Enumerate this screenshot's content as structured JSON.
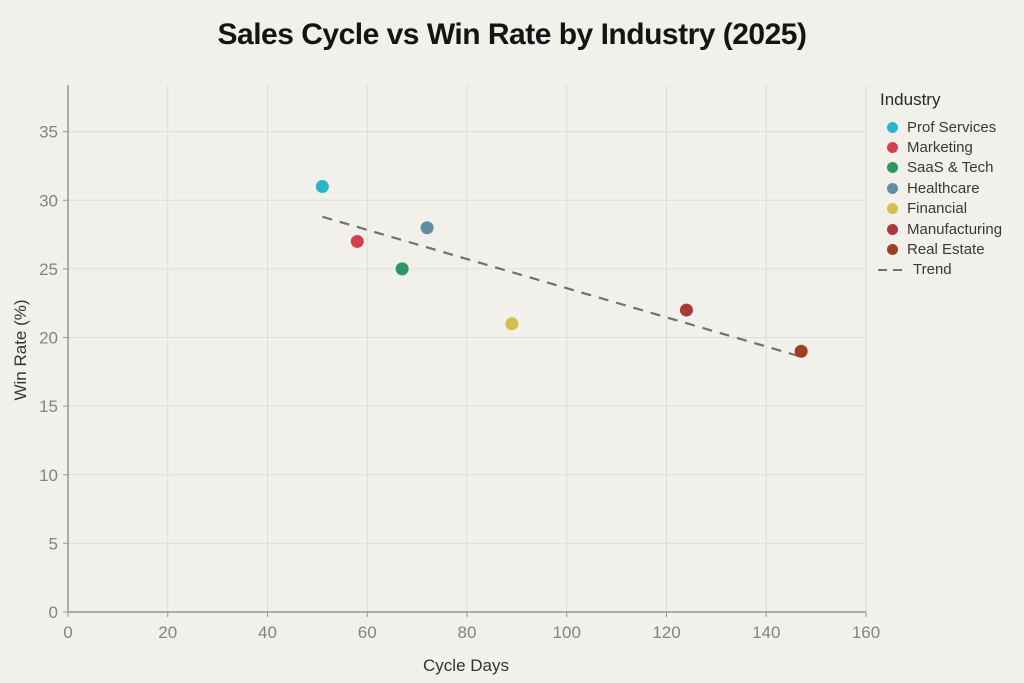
{
  "title": "Sales Cycle vs Win Rate by Industry (2025)",
  "colors": {
    "background": "#f1f0ea",
    "grid": "#dfded6",
    "axis": "#97968e",
    "tick_label": "#85847c",
    "axis_title": "#34332e",
    "title_text": "#141414",
    "trend": "#72716b"
  },
  "chart_data": {
    "type": "scatter",
    "title": "Sales Cycle vs Win Rate by Industry (2025)",
    "xlabel": "Cycle Days",
    "ylabel": "Win Rate (%)",
    "xlim": [
      0,
      160
    ],
    "ylim": [
      0,
      38.4
    ],
    "x_ticks": [
      0,
      20,
      40,
      60,
      80,
      100,
      120,
      140,
      160
    ],
    "y_ticks": [
      0,
      5,
      10,
      15,
      20,
      25,
      30,
      35
    ],
    "grid": true,
    "legend_title": "Industry",
    "legend_position": "right",
    "series": [
      {
        "name": "Prof Services",
        "color": "#27b6ca",
        "x": 51,
        "y": 31
      },
      {
        "name": "Marketing",
        "color": "#d4414d",
        "x": 58,
        "y": 27
      },
      {
        "name": "SaaS & Tech",
        "color": "#2e9663",
        "x": 67,
        "y": 25
      },
      {
        "name": "Healthcare",
        "color": "#60909f",
        "x": 72,
        "y": 28
      },
      {
        "name": "Financial",
        "color": "#d4bf4e",
        "x": 89,
        "y": 21
      },
      {
        "name": "Manufacturing",
        "color": "#aa393d",
        "x": 124,
        "y": 22
      },
      {
        "name": "Real Estate",
        "color": "#9d3f22",
        "x": 147,
        "y": 19
      }
    ],
    "trend": {
      "label": "Trend",
      "color": "#72716b",
      "x1": 51,
      "y1": 28.8,
      "x2": 147,
      "y2": 18.6
    }
  }
}
